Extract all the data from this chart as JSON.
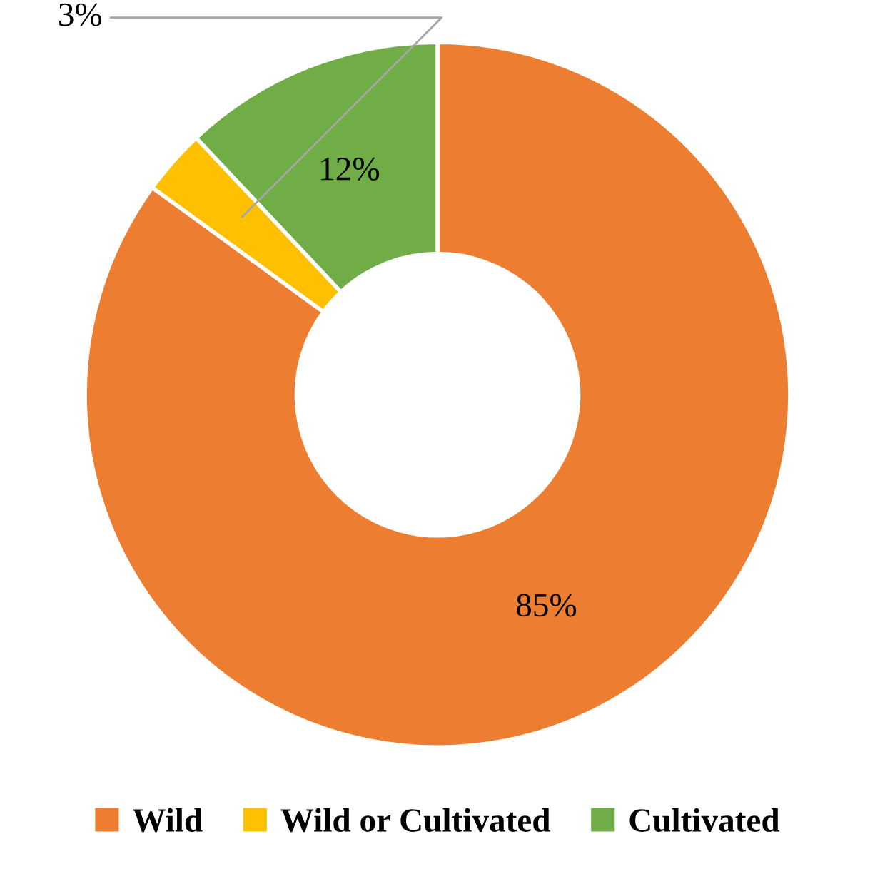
{
  "chart_data": {
    "type": "donut",
    "categories": [
      "Wild",
      "Wild or Cultivated",
      "Cultivated"
    ],
    "values": [
      85,
      3,
      12
    ],
    "colors": [
      "#ed7d31",
      "#ffc000",
      "#70ad47"
    ],
    "value_labels": [
      "85%",
      "3%",
      "12%"
    ],
    "legend": "bottom"
  }
}
